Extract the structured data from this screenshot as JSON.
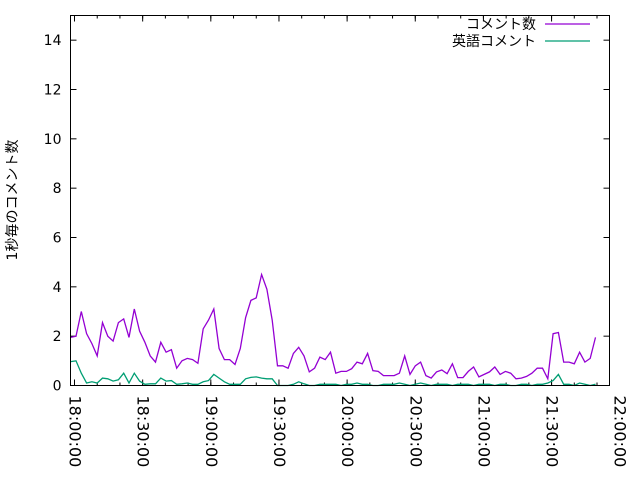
{
  "chart_data": {
    "type": "line",
    "title": "",
    "xlabel": "",
    "ylabel": "1秒毎のコメント数",
    "ylim": [
      0,
      15
    ],
    "xlim": [
      "17:58:14",
      "21:55:30"
    ],
    "yticks": [
      "0",
      "2",
      "4",
      "6",
      "8",
      "10",
      "12",
      "14"
    ],
    "xticks": [
      "18:00:00",
      "18:30:00",
      "19:00:00",
      "19:30:00",
      "20:00:00",
      "20:30:00",
      "21:00:00",
      "21:30:00",
      "22:00:00"
    ],
    "grid": false,
    "legend_position": "top-right",
    "x": [
      "17:58:20",
      "18:00:40",
      "18:03:00",
      "18:05:20",
      "18:07:40",
      "18:10:00",
      "18:12:20",
      "18:14:40",
      "18:17:00",
      "18:19:20",
      "18:21:40",
      "18:24:00",
      "18:26:20",
      "18:28:40",
      "18:31:00",
      "18:33:20",
      "18:35:40",
      "18:38:00",
      "18:40:20",
      "18:42:40",
      "18:45:00",
      "18:47:20",
      "18:49:40",
      "18:52:00",
      "18:54:20",
      "18:56:40",
      "18:59:00",
      "19:01:20",
      "19:03:40",
      "19:06:00",
      "19:08:20",
      "19:10:40",
      "19:13:00",
      "19:15:20",
      "19:17:40",
      "19:20:00",
      "19:22:20",
      "19:24:40",
      "19:27:00",
      "19:29:20",
      "19:31:40",
      "19:34:00",
      "19:36:20",
      "19:38:40",
      "19:41:00",
      "19:43:20",
      "19:45:40",
      "19:48:00",
      "19:50:20",
      "19:52:40",
      "19:55:00",
      "19:57:20",
      "19:59:40",
      "20:02:00",
      "20:04:20",
      "20:06:40",
      "20:09:00",
      "20:11:20",
      "20:13:40",
      "20:16:00",
      "20:18:20",
      "20:20:40",
      "20:23:00",
      "20:25:20",
      "20:27:40",
      "20:30:00",
      "20:32:20",
      "20:34:40",
      "20:37:00",
      "20:39:20",
      "20:41:40",
      "20:44:00",
      "20:46:20",
      "20:48:40",
      "20:51:00",
      "20:53:20",
      "20:55:40",
      "20:58:00",
      "21:00:20",
      "21:02:40",
      "21:05:00",
      "21:07:20",
      "21:09:40",
      "21:12:00",
      "21:14:20",
      "21:16:40",
      "21:19:00",
      "21:21:20",
      "21:23:40",
      "21:26:00",
      "21:28:20",
      "21:30:40",
      "21:33:00",
      "21:35:20",
      "21:37:40",
      "21:40:00",
      "21:42:20",
      "21:44:40",
      "21:47:00",
      "21:49:20"
    ],
    "series": [
      {
        "name": "コメント数",
        "color": "#9400d3",
        "values": [
          1.95,
          2.0,
          3.0,
          2.1,
          1.7,
          1.2,
          2.55,
          2.0,
          1.8,
          2.55,
          2.7,
          1.95,
          3.1,
          2.2,
          1.75,
          1.2,
          0.95,
          1.75,
          1.35,
          1.45,
          0.7,
          1.0,
          1.1,
          1.05,
          0.9,
          2.3,
          2.65,
          3.1,
          1.5,
          1.05,
          1.05,
          0.85,
          1.5,
          2.75,
          3.45,
          3.55,
          4.5,
          3.9,
          2.65,
          0.8,
          0.8,
          0.7,
          1.3,
          1.55,
          1.2,
          0.55,
          0.7,
          1.15,
          1.05,
          1.35,
          0.5,
          0.57,
          0.57,
          0.68,
          0.95,
          0.88,
          1.3,
          0.6,
          0.57,
          0.4,
          0.4,
          0.4,
          0.5,
          1.2,
          0.45,
          0.8,
          0.95,
          0.4,
          0.3,
          0.55,
          0.63,
          0.48,
          0.88,
          0.32,
          0.32,
          0.57,
          0.75,
          0.35,
          0.45,
          0.55,
          0.75,
          0.45,
          0.57,
          0.5,
          0.27,
          0.3,
          0.37,
          0.5,
          0.7,
          0.7,
          0.27,
          2.1,
          2.15,
          0.95,
          0.95,
          0.88,
          1.35,
          0.95,
          1.1,
          1.95
        ]
      },
      {
        "name": "英語コメント",
        "color": "#009e73",
        "values": [
          0.97,
          1.0,
          0.5,
          0.1,
          0.15,
          0.1,
          0.3,
          0.27,
          0.18,
          0.23,
          0.5,
          0.1,
          0.5,
          0.18,
          0.05,
          0.07,
          0.07,
          0.3,
          0.18,
          0.2,
          0.05,
          0.07,
          0.1,
          0.05,
          0.05,
          0.15,
          0.2,
          0.45,
          0.3,
          0.15,
          0.05,
          0.05,
          0.05,
          0.27,
          0.33,
          0.35,
          0.3,
          0.27,
          0.27,
          0,
          0,
          0,
          0.05,
          0.15,
          0.07,
          0,
          0,
          0.05,
          0.05,
          0.05,
          0.05,
          0,
          0.05,
          0.05,
          0.1,
          0.05,
          0.05,
          0,
          0,
          0.05,
          0.05,
          0.05,
          0.1,
          0.05,
          0,
          0.05,
          0.1,
          0.05,
          0,
          0.05,
          0.05,
          0.05,
          0,
          0.05,
          0.05,
          0.05,
          0,
          0.05,
          0.05,
          0.05,
          0,
          0.05,
          0.05,
          0,
          0,
          0.05,
          0.05,
          0,
          0.05,
          0.05,
          0.1,
          0.2,
          0.45,
          0.05,
          0.05,
          0,
          0.1,
          0.05,
          0,
          0.05
        ]
      }
    ]
  }
}
